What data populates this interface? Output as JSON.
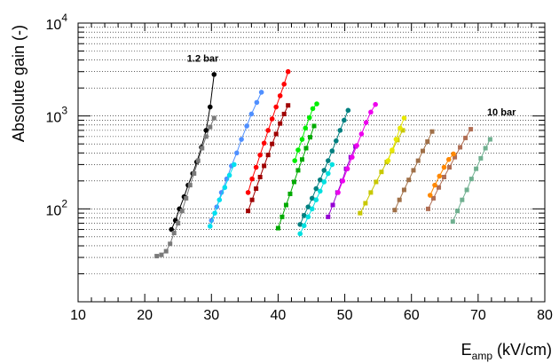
{
  "chart_data": {
    "type": "scatter",
    "title": "",
    "xlabel_main": "E",
    "xlabel_sub": "amp",
    "xlabel_unit": " (kV/cm)",
    "ylabel": "Absolute gain (-)",
    "xlim": [
      10,
      80
    ],
    "ylim": [
      10,
      10000
    ],
    "yscale": "log",
    "grid": "y-dotted",
    "x_ticks": [
      "10",
      "20",
      "30",
      "40",
      "50",
      "60",
      "70",
      "80"
    ],
    "y_ticks": [
      {
        "base": "10",
        "exp": "2"
      },
      {
        "base": "10",
        "exp": "3"
      },
      {
        "base": "10",
        "exp": "4"
      }
    ],
    "annotations": [
      {
        "text": "1.2 bar",
        "x": 28.7,
        "y": 3850
      },
      {
        "text": "10 bar",
        "x": 73.5,
        "y": 1020
      }
    ],
    "series": [
      {
        "color": "#000000",
        "marker": "circle",
        "x": [
          24.0,
          24.6,
          25.2,
          25.9,
          26.5,
          27.2,
          27.8,
          28.5,
          29.2,
          29.8,
          30.4
        ],
        "y": [
          60,
          75,
          100,
          135,
          180,
          240,
          320,
          460,
          700,
          1250,
          2800
        ]
      },
      {
        "color": "#7a7a7a",
        "marker": "square",
        "x": [
          21.8,
          22.5,
          23.2,
          23.8,
          24.4,
          25.0,
          25.6,
          26.2,
          26.8,
          27.4,
          28.0,
          28.6,
          29.2,
          29.8,
          30.4
        ],
        "y": [
          31,
          32,
          35,
          42,
          55,
          70,
          95,
          130,
          180,
          240,
          330,
          450,
          600,
          760,
          950
        ]
      },
      {
        "color": "#4f8fff",
        "marker": "circle",
        "x": [
          30.0,
          30.8,
          31.5,
          32.3,
          33.0,
          33.8,
          34.5,
          35.3,
          36.0,
          36.8,
          37.5
        ],
        "y": [
          75,
          105,
          150,
          210,
          290,
          400,
          560,
          780,
          1050,
          1400,
          1800
        ]
      },
      {
        "color": "#00e0f0",
        "marker": "circle",
        "x": [
          29.8,
          30.5,
          31.2,
          32.0,
          32.7,
          33.4
        ],
        "y": [
          65,
          90,
          125,
          170,
          230,
          300
        ]
      },
      {
        "color": "#ff0000",
        "marker": "circle",
        "x": [
          35.5,
          36.1,
          36.7,
          37.3,
          37.9,
          38.5,
          39.1,
          39.7,
          40.3,
          40.9,
          41.5
        ],
        "y": [
          150,
          210,
          280,
          380,
          510,
          700,
          930,
          1250,
          1650,
          2200,
          3000
        ]
      },
      {
        "color": "#a00000",
        "marker": "square",
        "x": [
          35.5,
          36.1,
          36.7,
          37.3,
          37.9,
          38.5,
          39.1,
          39.7,
          40.3,
          40.9,
          41.5
        ],
        "y": [
          95,
          125,
          165,
          220,
          290,
          380,
          500,
          640,
          830,
          1050,
          1300
        ]
      },
      {
        "color": "#00aa00",
        "marker": "square",
        "x": [
          40.0,
          40.6,
          41.2,
          41.8,
          42.4,
          43.0,
          43.6,
          44.2,
          44.8,
          45.4
        ],
        "y": [
          62,
          82,
          110,
          145,
          195,
          260,
          340,
          450,
          590,
          780
        ]
      },
      {
        "color": "#00ee00",
        "marker": "circle",
        "x": [
          42.5,
          43.0,
          43.6,
          44.1,
          44.7,
          45.2,
          45.8
        ],
        "y": [
          330,
          430,
          560,
          740,
          960,
          1200,
          1350
        ]
      },
      {
        "color": "#008080",
        "marker": "circle",
        "x": [
          43.3,
          43.9,
          44.5,
          45.1,
          45.7,
          46.3,
          46.9,
          47.5,
          48.1,
          48.7,
          49.3,
          49.9,
          50.5
        ],
        "y": [
          68,
          85,
          105,
          130,
          165,
          205,
          260,
          330,
          420,
          540,
          700,
          900,
          1150
        ]
      },
      {
        "color": "#00e0e0",
        "marker": "circle",
        "x": [
          43.3,
          43.9,
          44.5,
          45.1,
          45.7,
          46.3,
          46.9,
          47.5,
          48.1
        ],
        "y": [
          54,
          66,
          82,
          100,
          125,
          155,
          195,
          240,
          300
        ]
      },
      {
        "color": "#9400d3",
        "marker": "square",
        "x": [
          47.5,
          48.2,
          48.9,
          49.6,
          50.2,
          50.9,
          51.6
        ],
        "y": [
          82,
          110,
          150,
          200,
          270,
          360,
          470
        ]
      },
      {
        "color": "#ee00ee",
        "marker": "circle",
        "x": [
          49.0,
          49.7,
          50.4,
          51.1,
          51.8,
          52.5,
          53.2,
          53.9,
          54.6
        ],
        "y": [
          150,
          200,
          270,
          360,
          480,
          640,
          850,
          1100,
          1330
        ]
      },
      {
        "color": "#c8c800",
        "marker": "square",
        "x": [
          52.3,
          53.1,
          53.9,
          54.7,
          55.5,
          56.3,
          57.1,
          57.9,
          58.7
        ],
        "y": [
          90,
          115,
          150,
          195,
          250,
          320,
          420,
          550,
          700
        ]
      },
      {
        "color": "#e8e800",
        "marker": "circle",
        "x": [
          56.5,
          57.1,
          57.7,
          58.3,
          58.9
        ],
        "y": [
          330,
          430,
          560,
          740,
          950
        ]
      },
      {
        "color": "#a07048",
        "marker": "square",
        "x": [
          57.5,
          58.2,
          58.9,
          59.6,
          60.3,
          61.0,
          61.7,
          62.4,
          63.1
        ],
        "y": [
          97,
          125,
          160,
          205,
          260,
          330,
          420,
          530,
          680
        ]
      },
      {
        "color": "#b06e54",
        "marker": "square",
        "x": [
          62.5,
          63.3,
          64.1,
          64.9,
          65.7,
          66.5,
          67.3,
          68.1,
          68.9
        ],
        "y": [
          100,
          130,
          170,
          220,
          280,
          360,
          460,
          580,
          720
        ]
      },
      {
        "color": "#ff8800",
        "marker": "circle",
        "x": [
          62.8,
          63.5,
          64.2,
          64.9,
          65.6,
          66.3
        ],
        "y": [
          140,
          180,
          225,
          280,
          340,
          390
        ]
      },
      {
        "color": "#70b090",
        "marker": "square",
        "x": [
          66.2,
          66.9,
          67.6,
          68.3,
          69.0,
          69.7,
          70.4,
          71.1,
          71.8
        ],
        "y": [
          73,
          95,
          125,
          160,
          210,
          270,
          350,
          450,
          560
        ]
      }
    ]
  }
}
